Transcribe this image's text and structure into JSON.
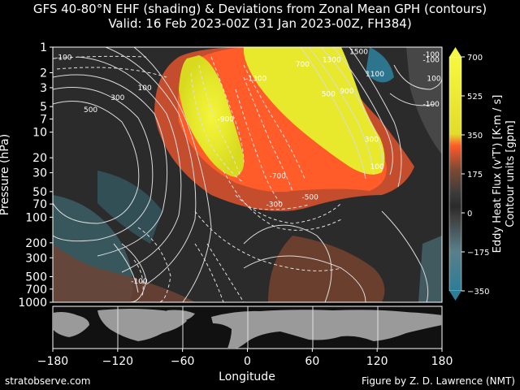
{
  "title_line1": "GFS 40-80°N EHF (shading) & Deviations from Zonal Mean GPH (contours)",
  "title_line2": "Valid: 16 Feb 2023-00Z  (31 Jan 2023-00Z, FH384)",
  "footer_left": "stratobserve.com",
  "footer_right": "Figure by Z. D. Lawrence (NMT)",
  "chart_data": {
    "type": "heatmap",
    "xlabel": "Longitude",
    "ylabel": "Pressure (hPa)",
    "x_ticks": [
      -180,
      -120,
      -60,
      0,
      60,
      120,
      180
    ],
    "y_ticks": [
      1,
      2,
      3,
      5,
      7,
      10,
      20,
      30,
      50,
      70,
      100,
      200,
      300,
      500,
      700,
      1000
    ],
    "xlim": [
      -180,
      180
    ],
    "ylim": [
      1000,
      1
    ],
    "y_scale": "log",
    "colorbar": {
      "label_line1": "Eddy Heat Flux (v'T') [K·m / s]",
      "label_line2": "Contour units [gpm]",
      "ticks": [
        -350,
        -175,
        0,
        175,
        350,
        525,
        700
      ],
      "range": [
        -350,
        700
      ],
      "colors": [
        "#2c7d97",
        "#3f8c9f",
        "#5c6d72",
        "#3a3a3a",
        "#2a2a2a",
        "#3a3a3a",
        "#7a4630",
        "#c84e2c",
        "#ff5a2a",
        "#e8e02a",
        "#f3f53c"
      ]
    },
    "contour_labels": [
      {
        "lon": -170,
        "p": 1.4,
        "text": "-100"
      },
      {
        "lon": -95,
        "p": 3.2,
        "text": "100"
      },
      {
        "lon": -120,
        "p": 4.2,
        "text": "300"
      },
      {
        "lon": -145,
        "p": 5.8,
        "text": "500"
      },
      {
        "lon": -20,
        "p": 7.5,
        "text": "-900"
      },
      {
        "lon": 8,
        "p": 2.5,
        "text": "-1300"
      },
      {
        "lon": 51,
        "p": 1.7,
        "text": "700"
      },
      {
        "lon": 78,
        "p": 1.5,
        "text": "1300"
      },
      {
        "lon": 103,
        "p": 1.2,
        "text": "1500"
      },
      {
        "lon": 118,
        "p": 2.2,
        "text": "1100"
      },
      {
        "lon": 92,
        "p": 3.5,
        "text": "900"
      },
      {
        "lon": 75,
        "p": 3.8,
        "text": "500"
      },
      {
        "lon": 115,
        "p": 13,
        "text": "300"
      },
      {
        "lon": 120,
        "p": 27,
        "text": "100"
      },
      {
        "lon": 28,
        "p": 35,
        "text": "-700"
      },
      {
        "lon": 58,
        "p": 62,
        "text": "-500"
      },
      {
        "lon": 25,
        "p": 75,
        "text": "-300"
      },
      {
        "lon": -100,
        "p": 600,
        "text": "-100"
      },
      {
        "lon": 170,
        "p": 1.3,
        "text": "-100"
      },
      {
        "lon": 170,
        "p": 1.5,
        "text": "-100"
      },
      {
        "lon": 170,
        "p": 5,
        "text": "-100"
      },
      {
        "lon": 180,
        "p": 2.5,
        "text": "100"
      }
    ],
    "strong_positive_bands": [
      {
        "name": "band-west",
        "lon_range": [
          -60,
          0
        ],
        "p_range": [
          1.3,
          30
        ],
        "level": "> 350"
      },
      {
        "name": "band-east",
        "lon_range": [
          0,
          120
        ],
        "p_range": [
          1,
          35
        ],
        "level": "> 350"
      }
    ]
  }
}
